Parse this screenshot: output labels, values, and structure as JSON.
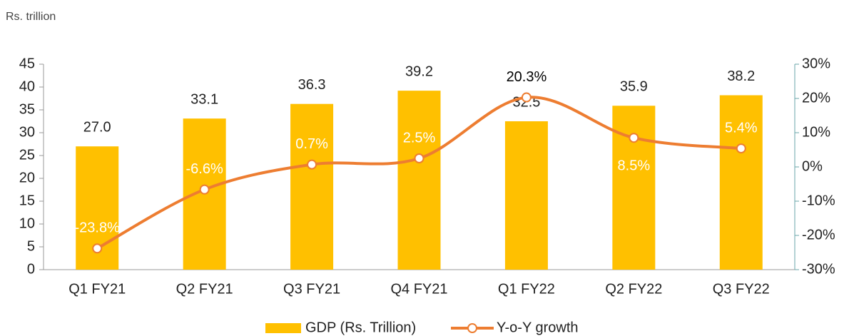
{
  "chart_data": {
    "type": "bar_line",
    "unit_label": "Rs. trillion",
    "categories": [
      "Q1 FY21",
      "Q2 FY21",
      "Q3 FY21",
      "Q4 FY21",
      "Q1 FY22",
      "Q2 FY22",
      "Q3 FY22"
    ],
    "series": [
      {
        "name": "GDP (Rs. Trillion)",
        "color": "#FFC000",
        "type": "bar",
        "values": [
          27.0,
          33.1,
          36.3,
          39.2,
          32.5,
          35.9,
          38.2
        ],
        "value_labels": [
          "27.0",
          "33.1",
          "36.3",
          "39.2",
          "32.5",
          "35.9",
          "38.2"
        ]
      },
      {
        "name": "Y-o-Y growth",
        "color": "#ED7D31",
        "type": "line",
        "axis": "y2",
        "values": [
          -23.8,
          -6.6,
          0.7,
          2.5,
          20.3,
          8.5,
          5.4
        ],
        "value_labels": [
          "-23.8%",
          "-6.6%",
          "0.7%",
          "2.5%",
          "20.3%",
          "8.5%",
          "5.4%"
        ]
      }
    ],
    "ylim": [
      0,
      45
    ],
    "yticks": [
      0,
      5,
      10,
      15,
      20,
      25,
      30,
      35,
      40,
      45
    ],
    "y2lim": [
      -30,
      30
    ],
    "y2ticks": [
      {
        "value": -30,
        "label": "-30%"
      },
      {
        "value": -20,
        "label": "-20%"
      },
      {
        "value": -10,
        "label": "-10%"
      },
      {
        "value": 0,
        "label": "0%"
      },
      {
        "value": 10,
        "label": "10%"
      },
      {
        "value": 20,
        "label": "20%"
      },
      {
        "value": 30,
        "label": "30%"
      }
    ],
    "grid": false
  }
}
